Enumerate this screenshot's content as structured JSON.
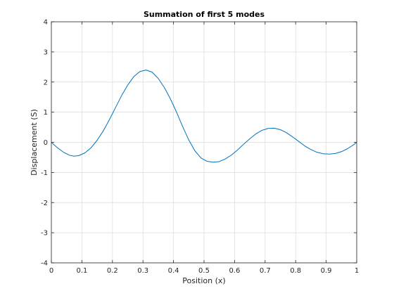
{
  "chart_data": {
    "type": "line",
    "title": "Summation of first 5 modes",
    "xlabel": "Position (x)",
    "ylabel": "Displacement (S)",
    "xlim": [
      0,
      1
    ],
    "ylim": [
      -4,
      4
    ],
    "xticks": [
      0,
      0.1,
      0.2,
      0.3,
      0.4,
      0.5,
      0.6,
      0.7,
      0.8,
      0.9,
      1
    ],
    "xtick_labels": [
      "0",
      "0.1",
      "0.2",
      "0.3",
      "0.4",
      "0.5",
      "0.6",
      "0.7",
      "0.8",
      "0.9",
      "1"
    ],
    "yticks": [
      -4,
      -3,
      -2,
      -1,
      0,
      1,
      2,
      3,
      4
    ],
    "ytick_labels": [
      "-4",
      "-3",
      "-2",
      "-1",
      "0",
      "1",
      "2",
      "3",
      "4"
    ],
    "grid": true,
    "series": [
      {
        "color": "#0072bd",
        "x": [
          0,
          0.02,
          0.04,
          0.06,
          0.075,
          0.09,
          0.11,
          0.13,
          0.15,
          0.17,
          0.19,
          0.21,
          0.23,
          0.25,
          0.27,
          0.29,
          0.31,
          0.33,
          0.35,
          0.37,
          0.39,
          0.41,
          0.43,
          0.45,
          0.47,
          0.49,
          0.51,
          0.53,
          0.55,
          0.57,
          0.59,
          0.61,
          0.63,
          0.65,
          0.67,
          0.69,
          0.71,
          0.73,
          0.75,
          0.77,
          0.79,
          0.81,
          0.83,
          0.85,
          0.87,
          0.89,
          0.91,
          0.93,
          0.95,
          0.97,
          0.99,
          1
        ],
        "y": [
          0,
          -0.18,
          -0.33,
          -0.43,
          -0.46,
          -0.44,
          -0.35,
          -0.18,
          0.07,
          0.38,
          0.75,
          1.15,
          1.55,
          1.9,
          2.18,
          2.35,
          2.4,
          2.33,
          2.12,
          1.82,
          1.44,
          1.0,
          0.52,
          0.08,
          -0.28,
          -0.52,
          -0.63,
          -0.66,
          -0.64,
          -0.55,
          -0.42,
          -0.25,
          -0.06,
          0.12,
          0.28,
          0.4,
          0.46,
          0.47,
          0.42,
          0.32,
          0.18,
          0.03,
          -0.12,
          -0.24,
          -0.33,
          -0.38,
          -0.39,
          -0.37,
          -0.31,
          -0.21,
          -0.08,
          0
        ]
      }
    ]
  }
}
